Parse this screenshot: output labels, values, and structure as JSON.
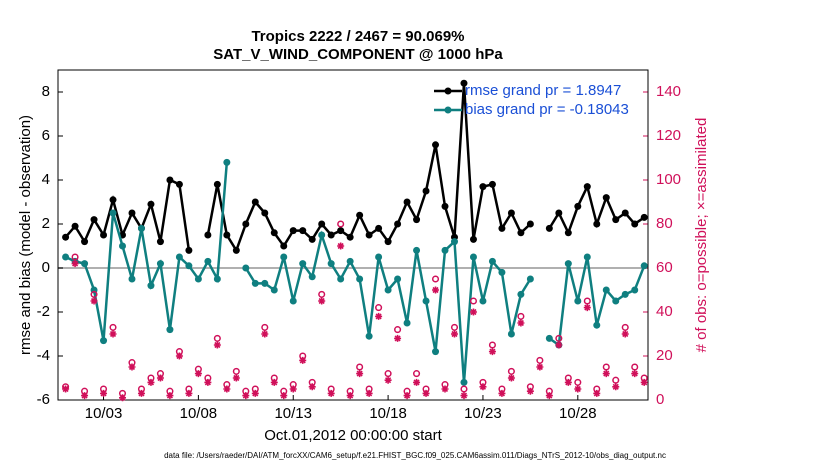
{
  "chart_data": {
    "type": "line",
    "title": "Tropics 2222 / 2467 = 90.069%",
    "subtitle": "SAT_V_WIND_COMPONENT @ 1000 hPa",
    "xlabel": "Oct.01,2012 00:00:00 start",
    "ylabel": "rmse and bias (model - observation)",
    "y2label": "# of obs: o=possible; ×=assimilated",
    "footnote": "data file: /Users/raeder/DAI/ATM_forcXX/CAM6_setup/f.e21.FHIST_BGC.f09_025.CAM6assim.011/Diags_NTrS_2012-10/obs_diag_output.nc",
    "x": [
      0,
      0.5,
      1,
      1.5,
      2,
      2.5,
      3,
      3.5,
      4,
      4.5,
      5,
      5.5,
      6,
      6.5,
      7,
      7.5,
      8,
      8.5,
      9,
      9.5,
      10,
      10.5,
      11,
      11.5,
      12,
      12.5,
      13,
      13.5,
      14,
      14.5,
      15,
      15.5,
      16,
      16.5,
      17,
      17.5,
      18,
      18.5,
      19,
      19.5,
      20,
      20.5,
      21,
      21.5,
      22,
      22.5,
      23,
      23.5,
      24,
      24.5,
      25,
      25.5,
      26,
      26.5,
      27,
      27.5,
      28,
      28.5,
      29,
      29.5,
      30,
      30.5
    ],
    "xlim": [
      -0.4,
      30.7
    ],
    "xticks": [
      {
        "value": 2,
        "label": "10/03"
      },
      {
        "value": 7,
        "label": "10/08"
      },
      {
        "value": 12,
        "label": "10/13"
      },
      {
        "value": 17,
        "label": "10/18"
      },
      {
        "value": 22,
        "label": "10/23"
      },
      {
        "value": 27,
        "label": "10/28"
      }
    ],
    "ylim": [
      -6,
      9
    ],
    "yticks": [
      -6,
      -4,
      -2,
      0,
      2,
      4,
      6,
      8
    ],
    "y2lim": [
      0,
      150
    ],
    "y2ticks": [
      0,
      20,
      40,
      60,
      80,
      100,
      120,
      140
    ],
    "series": [
      {
        "name": "rmse grand pr = 1.8947",
        "color": "#000000",
        "values": [
          1.4,
          1.9,
          1.2,
          2.2,
          1.5,
          3.1,
          1.5,
          2.5,
          1.8,
          2.9,
          1.2,
          4.0,
          3.8,
          0.8,
          null,
          1.5,
          3.8,
          1.5,
          0.8,
          2.0,
          3.0,
          2.5,
          1.6,
          1.0,
          1.7,
          1.7,
          1.3,
          2.0,
          1.5,
          1.7,
          1.4,
          2.4,
          1.5,
          1.8,
          1.2,
          2.0,
          3.0,
          2.2,
          3.5,
          5.6,
          2.8,
          1.4,
          8.4,
          1.3,
          3.7,
          3.8,
          1.8,
          2.5,
          1.6,
          2.0,
          null,
          1.8,
          2.5,
          1.6,
          2.8,
          3.7,
          2.0,
          3.2,
          2.2,
          2.5,
          2.0,
          2.3
        ]
      },
      {
        "name": "bias grand pr = -0.18043",
        "color": "#0f7f80",
        "values": [
          0.5,
          0.3,
          0.2,
          -1.0,
          -3.3,
          2.5,
          1.0,
          -0.5,
          1.8,
          -0.8,
          0.2,
          -2.8,
          0.5,
          0.1,
          -0.5,
          0.3,
          -0.5,
          4.8,
          null,
          0.0,
          -0.7,
          -0.7,
          -1.0,
          0.5,
          -1.5,
          0.2,
          -0.4,
          1.5,
          0.2,
          -0.5,
          0.3,
          -0.5,
          -3.1,
          0.5,
          -1.0,
          -0.5,
          -2.5,
          0.8,
          -1.5,
          -3.8,
          0.8,
          1.2,
          -5.2,
          0.5,
          -1.5,
          0.3,
          -0.2,
          -3.0,
          -1.2,
          -0.5,
          null,
          -3.2,
          -3.5,
          0.2,
          -1.5,
          0.5,
          -2.6,
          -1.0,
          -1.5,
          -1.2,
          -1.0,
          0.1
        ]
      },
      {
        "marker": "o",
        "axis": "y2",
        "color": "#d0105a",
        "values": [
          6,
          65,
          4,
          48,
          5,
          33,
          3,
          17,
          5,
          10,
          12,
          4,
          22,
          5,
          14,
          10,
          28,
          7,
          13,
          4,
          5,
          33,
          10,
          4,
          7,
          20,
          8,
          48,
          5,
          80,
          4,
          15,
          5,
          42,
          12,
          32,
          4,
          12,
          5,
          55,
          7,
          33,
          5,
          45,
          8,
          25,
          5,
          13,
          38,
          6,
          18,
          4,
          28,
          10,
          8,
          45,
          5,
          15,
          9,
          33,
          15,
          10
        ]
      },
      {
        "marker": "*",
        "axis": "y2",
        "color": "#d0105a",
        "values": [
          5,
          62,
          2,
          45,
          3,
          30,
          1,
          15,
          3,
          8,
          10,
          2,
          20,
          3,
          12,
          8,
          25,
          5,
          10,
          2,
          3,
          30,
          8,
          2,
          5,
          18,
          6,
          45,
          3,
          70,
          2,
          12,
          3,
          38,
          9,
          28,
          2,
          8,
          3,
          50,
          5,
          30,
          2,
          40,
          6,
          22,
          3,
          10,
          35,
          4,
          15,
          2,
          25,
          8,
          5,
          42,
          3,
          12,
          6,
          30,
          12,
          8
        ]
      }
    ]
  }
}
